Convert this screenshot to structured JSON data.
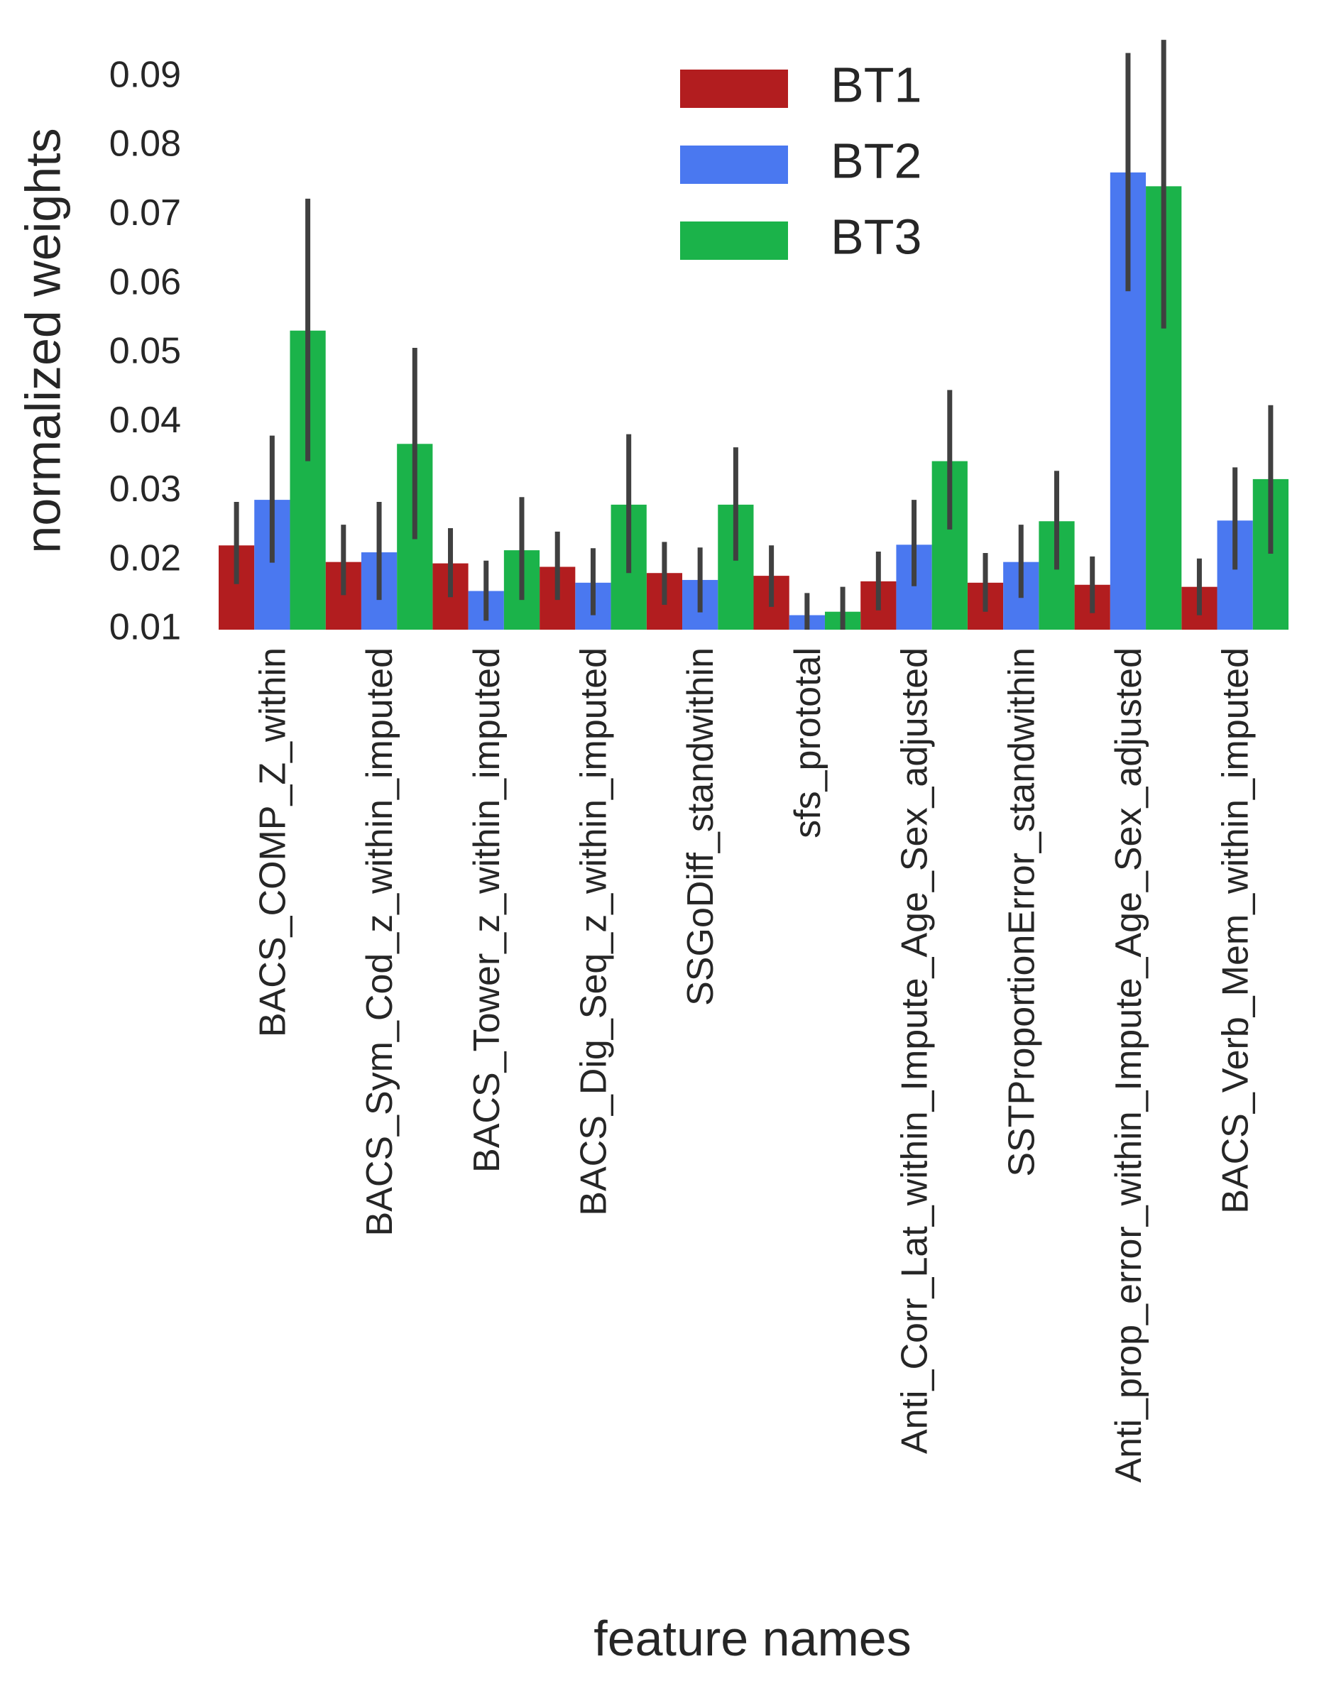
{
  "chart_data": {
    "type": "bar",
    "title": "",
    "xlabel": "feature names",
    "ylabel": "normalized weights",
    "ylim": [
      0.01,
      0.095
    ],
    "yticks": [
      0.01,
      0.02,
      0.03,
      0.04,
      0.05,
      0.06,
      0.07,
      0.08,
      0.09
    ],
    "ytick_labels": [
      "0.01",
      "0.02",
      "0.03",
      "0.04",
      "0.05",
      "0.06",
      "0.07",
      "0.08",
      "0.09"
    ],
    "grid": false,
    "legend_position": "top-center",
    "categories": [
      "BACS_COMP_Z_within",
      "BACS_Sym_Cod_z_within_imputed",
      "BACS_Tower_z_within_imputed",
      "BACS_Dig_Seq_z_within_imputed",
      "SSGoDiff_standwithin",
      "sfs_prototal",
      "Anti_Corr_Lat_within_Impute_Age_Sex_adjusted",
      "SSTProportionError_standwithin",
      "Anti_prop_error_within_Impute_Age_Sex_adjusted",
      "BACS_Verb_Mem_within_imputed"
    ],
    "series": [
      {
        "name": "BT1",
        "color": "#b21d1f",
        "values": [
          0.0222,
          0.0198,
          0.0196,
          0.0191,
          0.0182,
          0.0178,
          0.017,
          0.0168,
          0.0165,
          0.0162
        ],
        "err_low": [
          0.0166,
          0.015,
          0.0147,
          0.0143,
          0.0136,
          0.0133,
          0.0128,
          0.0126,
          0.0124,
          0.0121
        ],
        "err_high": [
          0.0285,
          0.0252,
          0.0247,
          0.0242,
          0.0227,
          0.0222,
          0.0213,
          0.0211,
          0.0206,
          0.0203
        ]
      },
      {
        "name": "BT2",
        "color": "#4a78f0",
        "values": [
          0.0288,
          0.0212,
          0.0156,
          0.0168,
          0.0172,
          0.0121,
          0.0223,
          0.0198,
          0.0762,
          0.0258
        ],
        "err_low": [
          0.0197,
          0.0143,
          0.0113,
          0.0121,
          0.0125,
          0.01,
          0.0163,
          0.0146,
          0.059,
          0.0187
        ],
        "err_high": [
          0.0381,
          0.0285,
          0.02,
          0.0218,
          0.0219,
          0.0153,
          0.0288,
          0.0252,
          0.0935,
          0.0335
        ]
      },
      {
        "name": "BT3",
        "color": "#1bb34a",
        "values": [
          0.0533,
          0.0369,
          0.0215,
          0.0281,
          0.0281,
          0.0126,
          0.0344,
          0.0257,
          0.0742,
          0.0318
        ],
        "err_low": [
          0.0344,
          0.0231,
          0.0143,
          0.0182,
          0.02,
          0.01,
          0.0245,
          0.0187,
          0.0536,
          0.021
        ],
        "err_high": [
          0.0724,
          0.0508,
          0.0292,
          0.0383,
          0.0364,
          0.0162,
          0.0447,
          0.033,
          0.0954,
          0.0425
        ]
      }
    ]
  }
}
